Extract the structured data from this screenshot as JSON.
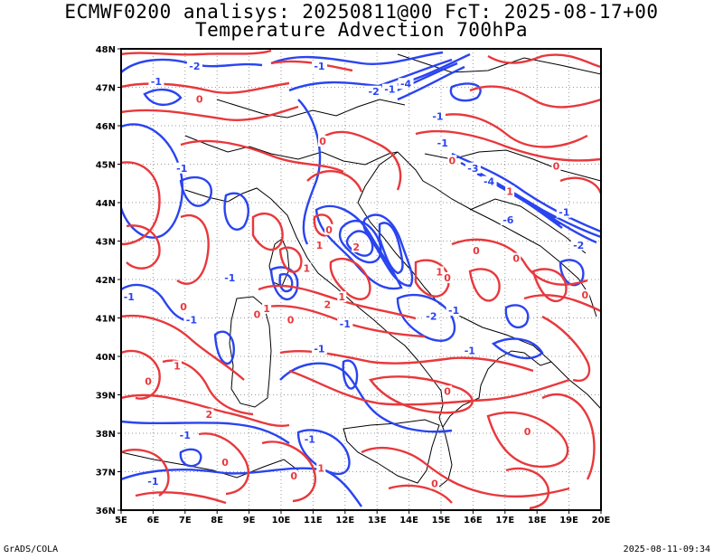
{
  "header": {
    "title_line1": "ECMWF0200 analisys: 20250811@00 FcT: 2025-08-17+00",
    "title_line2": "Temperature Advection 700hPa"
  },
  "footer": {
    "left": "GrADS/COLA",
    "right": "2025-08-11-09:34"
  },
  "map": {
    "lon_range": [
      5,
      20
    ],
    "lat_range": [
      36,
      48
    ],
    "lon_ticks": [
      "5E",
      "6E",
      "7E",
      "8E",
      "9E",
      "10E",
      "11E",
      "12E",
      "13E",
      "14E",
      "15E",
      "16E",
      "17E",
      "18E",
      "19E",
      "20E"
    ],
    "lat_ticks": [
      "36N",
      "37N",
      "38N",
      "39N",
      "40N",
      "41N",
      "42N",
      "43N",
      "44N",
      "45N",
      "46N",
      "47N",
      "48N"
    ],
    "grid": "dotted",
    "colors": {
      "negative_contours": "#2a44f0",
      "positive_contours": "#e8383c",
      "coastline": "#000000",
      "grid": "#9a9a9a"
    },
    "contour_labels": [
      {
        "text": "-1",
        "lon": 6.1,
        "lat": 47.15,
        "sign": "neg"
      },
      {
        "text": "-2",
        "lon": 7.3,
        "lat": 47.55,
        "sign": "neg"
      },
      {
        "text": "-1",
        "lon": 11.2,
        "lat": 47.55,
        "sign": "neg"
      },
      {
        "text": "-2",
        "lon": 12.9,
        "lat": 46.9,
        "sign": "neg"
      },
      {
        "text": "-1",
        "lon": 13.4,
        "lat": 46.95,
        "sign": "neg"
      },
      {
        "text": "-4",
        "lon": 13.9,
        "lat": 47.1,
        "sign": "neg"
      },
      {
        "text": "-1",
        "lon": 14.9,
        "lat": 46.25,
        "sign": "neg"
      },
      {
        "text": "-1",
        "lon": 6.9,
        "lat": 44.9,
        "sign": "neg"
      },
      {
        "text": "-1",
        "lon": 15.05,
        "lat": 45.55,
        "sign": "neg"
      },
      {
        "text": "-3",
        "lon": 16,
        "lat": 44.9,
        "sign": "neg"
      },
      {
        "text": "-4",
        "lon": 16.5,
        "lat": 44.55,
        "sign": "neg"
      },
      {
        "text": "-1",
        "lon": 18.85,
        "lat": 43.75,
        "sign": "neg"
      },
      {
        "text": "-6",
        "lon": 17.1,
        "lat": 43.55,
        "sign": "neg"
      },
      {
        "text": "-2",
        "lon": 19.3,
        "lat": 42.9,
        "sign": "neg"
      },
      {
        "text": "-1",
        "lon": 8.4,
        "lat": 42.05,
        "sign": "neg"
      },
      {
        "text": "-1",
        "lon": 5.25,
        "lat": 41.55,
        "sign": "neg"
      },
      {
        "text": "-1",
        "lon": 7.2,
        "lat": 40.95,
        "sign": "neg"
      },
      {
        "text": "-1",
        "lon": 15.4,
        "lat": 41.2,
        "sign": "neg"
      },
      {
        "text": "-2",
        "lon": 14.7,
        "lat": 41.05,
        "sign": "neg"
      },
      {
        "text": "-1",
        "lon": 12,
        "lat": 40.85,
        "sign": "neg"
      },
      {
        "text": "-1",
        "lon": 11.2,
        "lat": 40.2,
        "sign": "neg"
      },
      {
        "text": "-1",
        "lon": 15.9,
        "lat": 40.15,
        "sign": "neg"
      },
      {
        "text": "-1",
        "lon": 7,
        "lat": 37.95,
        "sign": "neg"
      },
      {
        "text": "-1",
        "lon": 10.9,
        "lat": 37.85,
        "sign": "neg"
      },
      {
        "text": "-1",
        "lon": 6,
        "lat": 36.75,
        "sign": "neg"
      },
      {
        "text": "0",
        "lon": 7.45,
        "lat": 46.7,
        "sign": "pos"
      },
      {
        "text": "0",
        "lon": 11.3,
        "lat": 45.6,
        "sign": "pos"
      },
      {
        "text": "0",
        "lon": 11.5,
        "lat": 43.3,
        "sign": "pos"
      },
      {
        "text": "0",
        "lon": 16.1,
        "lat": 42.75,
        "sign": "pos"
      },
      {
        "text": "0",
        "lon": 15.2,
        "lat": 42.05,
        "sign": "pos"
      },
      {
        "text": "0",
        "lon": 17.35,
        "lat": 42.55,
        "sign": "pos"
      },
      {
        "text": "0",
        "lon": 19.5,
        "lat": 41.6,
        "sign": "pos"
      },
      {
        "text": "0",
        "lon": 6.95,
        "lat": 41.3,
        "sign": "pos"
      },
      {
        "text": "0",
        "lon": 9.25,
        "lat": 41.1,
        "sign": "pos"
      },
      {
        "text": "1",
        "lon": 9.55,
        "lat": 41.25,
        "sign": "pos"
      },
      {
        "text": "0",
        "lon": 10.3,
        "lat": 40.95,
        "sign": "pos"
      },
      {
        "text": "2",
        "lon": 11.45,
        "lat": 41.35,
        "sign": "pos"
      },
      {
        "text": "1",
        "lon": 11.9,
        "lat": 41.55,
        "sign": "pos"
      },
      {
        "text": "1",
        "lon": 11.2,
        "lat": 42.9,
        "sign": "pos"
      },
      {
        "text": "1",
        "lon": 10.8,
        "lat": 42.3,
        "sign": "pos"
      },
      {
        "text": "2",
        "lon": 12.35,
        "lat": 42.85,
        "sign": "pos"
      },
      {
        "text": "1",
        "lon": 17.15,
        "lat": 44.3,
        "sign": "pos"
      },
      {
        "text": "1",
        "lon": 14.95,
        "lat": 42.2,
        "sign": "pos"
      },
      {
        "text": "0",
        "lon": 15.2,
        "lat": 39.1,
        "sign": "pos"
      },
      {
        "text": "0",
        "lon": 17.7,
        "lat": 38.05,
        "sign": "pos"
      },
      {
        "text": "0",
        "lon": 5.85,
        "lat": 39.35,
        "sign": "pos"
      },
      {
        "text": "1",
        "lon": 6.75,
        "lat": 39.75,
        "sign": "pos"
      },
      {
        "text": "2",
        "lon": 7.75,
        "lat": 38.5,
        "sign": "pos"
      },
      {
        "text": "0",
        "lon": 8.25,
        "lat": 37.25,
        "sign": "pos"
      },
      {
        "text": "0",
        "lon": 10.4,
        "lat": 36.9,
        "sign": "pos"
      },
      {
        "text": "1",
        "lon": 11.25,
        "lat": 37.1,
        "sign": "pos"
      },
      {
        "text": "0",
        "lon": 14.8,
        "lat": 36.7,
        "sign": "pos"
      },
      {
        "text": "0",
        "lon": 15.35,
        "lat": 45.1,
        "sign": "pos"
      },
      {
        "text": "0",
        "lon": 18.6,
        "lat": 44.95,
        "sign": "pos"
      }
    ]
  }
}
